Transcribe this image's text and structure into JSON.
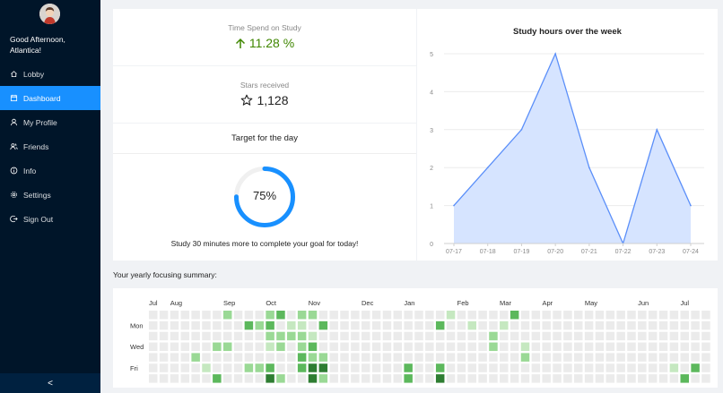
{
  "sidebar": {
    "greeting": "Good Afternoon, Atlantica!",
    "items": [
      {
        "label": "Lobby",
        "icon": "home-icon",
        "active": false
      },
      {
        "label": "Dashboard",
        "icon": "calendar-icon",
        "active": true
      },
      {
        "label": "My Profile",
        "icon": "user-icon",
        "active": false
      },
      {
        "label": "Friends",
        "icon": "friends-icon",
        "active": false
      },
      {
        "label": "Info",
        "icon": "info-icon",
        "active": false
      },
      {
        "label": "Settings",
        "icon": "gear-icon",
        "active": false
      },
      {
        "label": "Sign Out",
        "icon": "logout-icon",
        "active": false
      }
    ],
    "collapse_label": "<",
    "accent": "#1890ff",
    "background": "#001529"
  },
  "stats": {
    "time_spend_label": "Time Spend on Study",
    "time_spend_value": "11.28 %",
    "time_spend_color": "#3f8600",
    "stars_label": "Stars received",
    "stars_value": "1,128"
  },
  "target": {
    "title": "Target for the day",
    "percent_label": "75%",
    "percent": 75,
    "message": "Study 30 minutes more to complete your goal for today!"
  },
  "chart_data": {
    "type": "area",
    "title": "Study hours over the week",
    "categories": [
      "07-17",
      "07-18",
      "07-19",
      "07-20",
      "07-21",
      "07-22",
      "07-23",
      "07-24"
    ],
    "values": [
      1,
      2,
      3,
      5,
      2,
      0,
      3,
      1
    ],
    "ylim": [
      0,
      5
    ],
    "yticks": [
      0,
      1,
      2,
      3,
      4,
      5
    ],
    "grid": true,
    "line_color": "#5b8ff9",
    "fill_color": "#d6e4ff"
  },
  "summary": {
    "title": "Your yearly focusing summary:",
    "months": [
      {
        "label": "Jul",
        "col": 0
      },
      {
        "label": "Aug",
        "col": 2
      },
      {
        "label": "Sep",
        "col": 7
      },
      {
        "label": "Oct",
        "col": 11
      },
      {
        "label": "Nov",
        "col": 15
      },
      {
        "label": "Dec",
        "col": 20
      },
      {
        "label": "Jan",
        "col": 24
      },
      {
        "label": "Feb",
        "col": 29
      },
      {
        "label": "Mar",
        "col": 33
      },
      {
        "label": "Apr",
        "col": 37
      },
      {
        "label": "May",
        "col": 41
      },
      {
        "label": "Jun",
        "col": 46
      },
      {
        "label": "Jul",
        "col": 50
      }
    ],
    "weekdays": [
      {
        "label": "Mon",
        "row": 1
      },
      {
        "label": "Wed",
        "row": 3
      },
      {
        "label": "Fri",
        "row": 5
      }
    ],
    "levels": [
      "#ebebeb",
      "#c5e8c0",
      "#9ad995",
      "#5cb85c",
      "#2e7d32"
    ],
    "active_cells": [
      [
        7,
        0,
        2
      ],
      [
        11,
        0,
        2
      ],
      [
        12,
        0,
        3
      ],
      [
        14,
        0,
        2
      ],
      [
        15,
        0,
        2
      ],
      [
        28,
        0,
        1
      ],
      [
        34,
        0,
        3
      ],
      [
        9,
        1,
        3
      ],
      [
        10,
        1,
        2
      ],
      [
        11,
        1,
        3
      ],
      [
        13,
        1,
        1
      ],
      [
        14,
        1,
        1
      ],
      [
        16,
        1,
        3
      ],
      [
        27,
        1,
        3
      ],
      [
        30,
        1,
        1
      ],
      [
        33,
        1,
        1
      ],
      [
        11,
        2,
        2
      ],
      [
        12,
        2,
        2
      ],
      [
        13,
        2,
        2
      ],
      [
        14,
        2,
        2
      ],
      [
        15,
        2,
        1
      ],
      [
        32,
        2,
        2
      ],
      [
        6,
        3,
        2
      ],
      [
        7,
        3,
        2
      ],
      [
        11,
        3,
        1
      ],
      [
        12,
        3,
        2
      ],
      [
        14,
        3,
        2
      ],
      [
        15,
        3,
        3
      ],
      [
        32,
        3,
        2
      ],
      [
        35,
        3,
        1
      ],
      [
        4,
        4,
        2
      ],
      [
        14,
        4,
        3
      ],
      [
        15,
        4,
        2
      ],
      [
        16,
        4,
        2
      ],
      [
        35,
        4,
        2
      ],
      [
        5,
        5,
        1
      ],
      [
        9,
        5,
        2
      ],
      [
        10,
        5,
        2
      ],
      [
        11,
        5,
        3
      ],
      [
        14,
        5,
        3
      ],
      [
        15,
        5,
        4
      ],
      [
        16,
        5,
        4
      ],
      [
        24,
        5,
        3
      ],
      [
        27,
        5,
        3
      ],
      [
        49,
        5,
        1
      ],
      [
        51,
        5,
        3
      ],
      [
        6,
        6,
        3
      ],
      [
        11,
        6,
        4
      ],
      [
        12,
        6,
        2
      ],
      [
        15,
        6,
        4
      ],
      [
        16,
        6,
        2
      ],
      [
        24,
        6,
        3
      ],
      [
        27,
        6,
        4
      ],
      [
        50,
        6,
        3
      ]
    ]
  }
}
